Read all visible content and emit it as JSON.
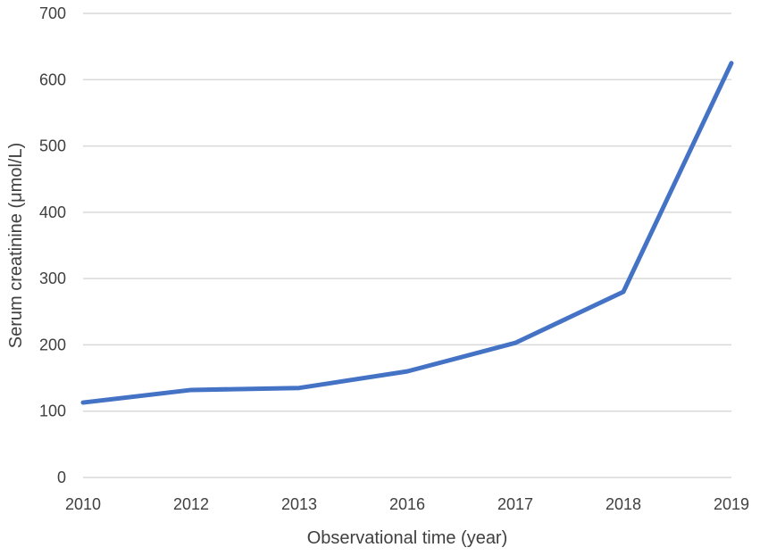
{
  "chart_data": {
    "type": "line",
    "title": "",
    "xlabel": "Observational time (year)",
    "ylabel": "Serum creatinine (μmol/L)",
    "categories": [
      "2010",
      "2012",
      "2013",
      "2016",
      "2017",
      "2018",
      "2019"
    ],
    "series": [
      {
        "values": [
          113,
          132,
          135,
          160,
          203,
          280,
          625
        ],
        "color": "#4472c4"
      }
    ],
    "ylim": [
      0,
      700
    ],
    "yticks": [
      0,
      100,
      200,
      300,
      400,
      500,
      600,
      700
    ],
    "grid": true,
    "legend": "none"
  }
}
